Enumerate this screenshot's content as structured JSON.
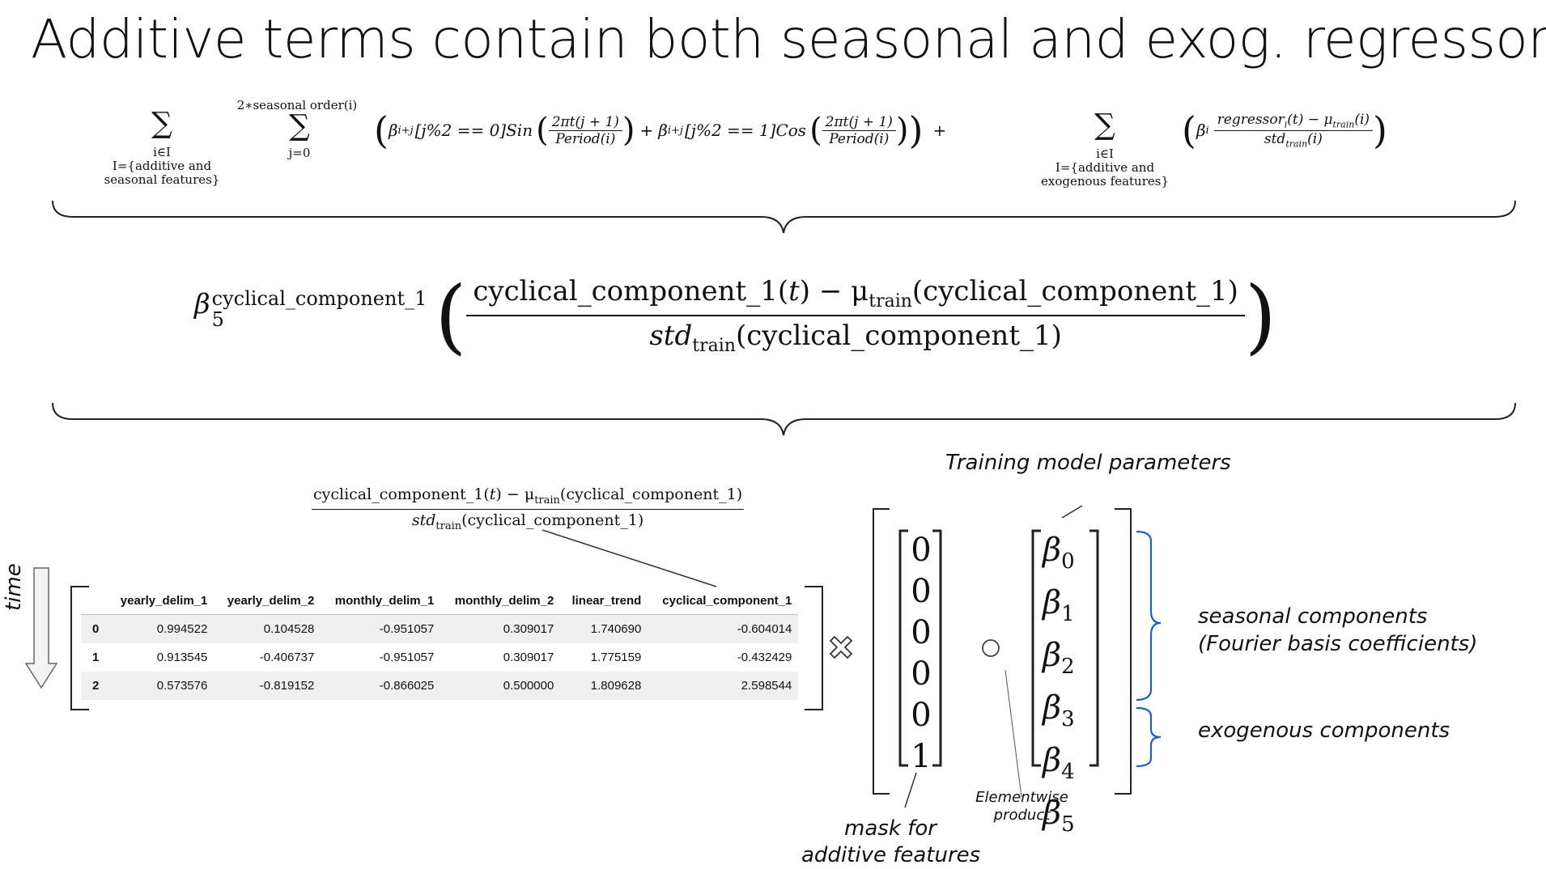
{
  "title": "Additive terms contain both seasonal and exog. regressors",
  "formula1": {
    "sum1_under_a": "i∈I",
    "sum1_under_b": "I={additive and",
    "sum1_under_c": "seasonal features}",
    "sum2_over": "2∗seasonal order(i)",
    "sum2_under": "j=0",
    "term_beta_sin": "β",
    "sub_ij": "i+j",
    "cond_sin": "[j%2 == 0]Sin",
    "frac_num": "2πt(j + 1)",
    "frac_den": "Period(i)",
    "plus": "+",
    "cond_cos": "[j%2 == 1]Cos",
    "plus_end": "+",
    "sum3_under_a": "i∈I",
    "sum3_under_b": "I={additive and",
    "sum3_under_c": "exogenous features}",
    "beta_i": "β",
    "sub_i": "i",
    "reg_num": "regressor",
    "reg_num_rest": "(t) − μ",
    "train": "train",
    "paren_i": "(i)",
    "reg_den": "std"
  },
  "formula2": {
    "beta": "β",
    "beta_sub": "5",
    "beta_sup": "cyclical_component_1",
    "num_a": "cyclical_component_1(",
    "t": "t",
    "num_b": ") − μ",
    "train": "train",
    "num_c": "(cyclical_component_1)",
    "den_std": "std",
    "den_c": "(cyclical_component_1)"
  },
  "formula3": {
    "num_a": "cyclical_component_1(",
    "t": "t",
    "num_b": ") − μ",
    "train": "train",
    "num_c": "(cyclical_component_1)",
    "den_std": "std",
    "den_c": "(cyclical_component_1)"
  },
  "time_label": "time",
  "table": {
    "columns": [
      "",
      "yearly_delim_1",
      "yearly_delim_2",
      "monthly_delim_1",
      "monthly_delim_2",
      "linear_trend",
      "cyclical_component_1"
    ],
    "rows": [
      [
        "0",
        "0.994522",
        "0.104528",
        "-0.951057",
        "0.309017",
        "1.740690",
        "-0.604014"
      ],
      [
        "1",
        "0.913545",
        "-0.406737",
        "-0.951057",
        "0.309017",
        "1.775159",
        "-0.432429"
      ],
      [
        "2",
        "0.573576",
        "-0.819152",
        "-0.866025",
        "0.500000",
        "1.809628",
        "2.598544"
      ]
    ]
  },
  "training_params_label": "Training model parameters",
  "mask_vector": [
    "0",
    "0",
    "0",
    "0",
    "0",
    "1"
  ],
  "beta_vector": [
    {
      "symbol": "β",
      "sub": "0"
    },
    {
      "symbol": "β",
      "sub": "1"
    },
    {
      "symbol": "β",
      "sub": "2"
    },
    {
      "symbol": "β",
      "sub": "3"
    },
    {
      "symbol": "β",
      "sub": "4"
    },
    {
      "symbol": "β",
      "sub": "5"
    }
  ],
  "seasonal_label_1": "seasonal components",
  "seasonal_label_2": "(Fourier basis coefficients)",
  "exogenous_label": "exogenous components",
  "elementwise_label_1": "Elementwise",
  "elementwise_label_2": "product",
  "mask_label_1": "mask for",
  "mask_label_2": "additive features",
  "colors": {
    "brace_blue": "#1f5fbf",
    "text": "#111111",
    "gray": "#777777"
  }
}
